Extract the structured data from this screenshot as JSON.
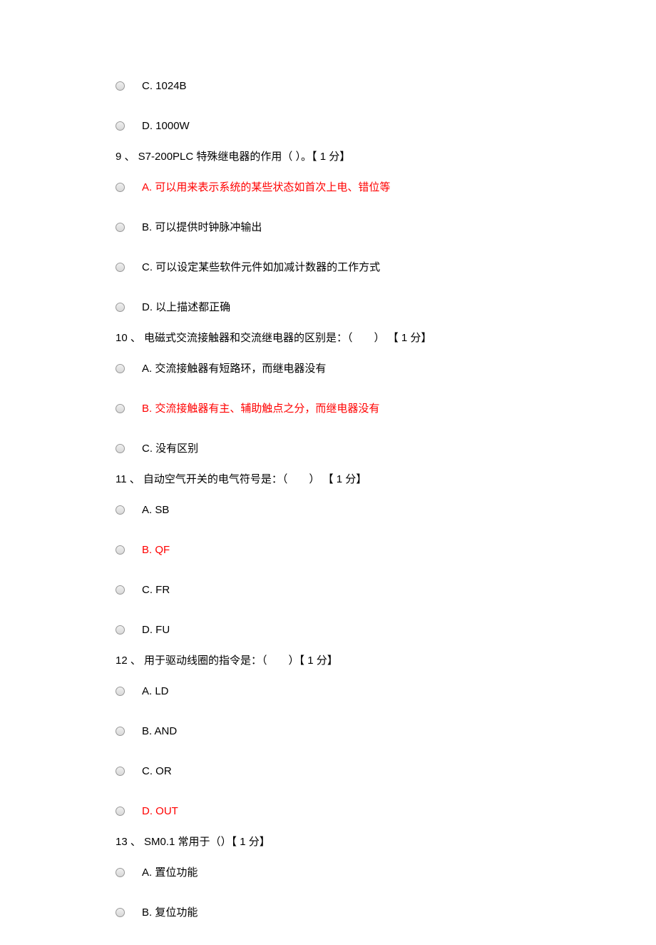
{
  "colors": {
    "text_normal": "#000000",
    "text_highlight": "#ff0000",
    "background": "#ffffff",
    "radio_border": "#999999"
  },
  "items": [
    {
      "type": "option",
      "text": "C. 1024B",
      "highlight": false
    },
    {
      "type": "option",
      "text": "D. 1000W",
      "highlight": false
    },
    {
      "type": "question",
      "text": "9 、 S7-200PLC 特殊继电器的作用（  ）。【 1 分】"
    },
    {
      "type": "option",
      "text": "A. 可以用来表示系统的某些状态如首次上电、错位等",
      "highlight": true
    },
    {
      "type": "option",
      "text": "B. 可以提供时钟脉冲输出",
      "highlight": false
    },
    {
      "type": "option",
      "text": "C. 可以设定某些软件元件如加减计数器的工作方式",
      "highlight": false
    },
    {
      "type": "option",
      "text": "D. 以上描述都正确",
      "highlight": false
    },
    {
      "type": "question",
      "text": "10 、 电磁式交流接触器和交流继电器的区别是：（　　） 【 1 分】"
    },
    {
      "type": "option",
      "text": "A. 交流接触器有短路环，而继电器没有",
      "highlight": false
    },
    {
      "type": "option",
      "text": "B. 交流接触器有主、辅助触点之分，而继电器没有",
      "highlight": true
    },
    {
      "type": "option",
      "text": "C. 没有区别",
      "highlight": false
    },
    {
      "type": "question",
      "text": "11 、 自动空气开关的电气符号是：（　　） 【 1 分】"
    },
    {
      "type": "option",
      "text": "A. SB",
      "highlight": false
    },
    {
      "type": "option",
      "text": "B. QF",
      "highlight": true
    },
    {
      "type": "option",
      "text": "C. FR",
      "highlight": false
    },
    {
      "type": "option",
      "text": "D. FU",
      "highlight": false
    },
    {
      "type": "question",
      "text": "12 、 用于驱动线圈的指令是：（　　）【 1 分】"
    },
    {
      "type": "option",
      "text": "A. LD",
      "highlight": false
    },
    {
      "type": "option",
      "text": "B. AND",
      "highlight": false
    },
    {
      "type": "option",
      "text": "C. OR",
      "highlight": false
    },
    {
      "type": "option",
      "text": "D. OUT",
      "highlight": true
    },
    {
      "type": "question",
      "text": "13 、 SM0.1 常用于（）【 1 分】"
    },
    {
      "type": "option",
      "text": "A. 置位功能",
      "highlight": false
    },
    {
      "type": "option",
      "text": "B. 复位功能",
      "highlight": false
    }
  ]
}
